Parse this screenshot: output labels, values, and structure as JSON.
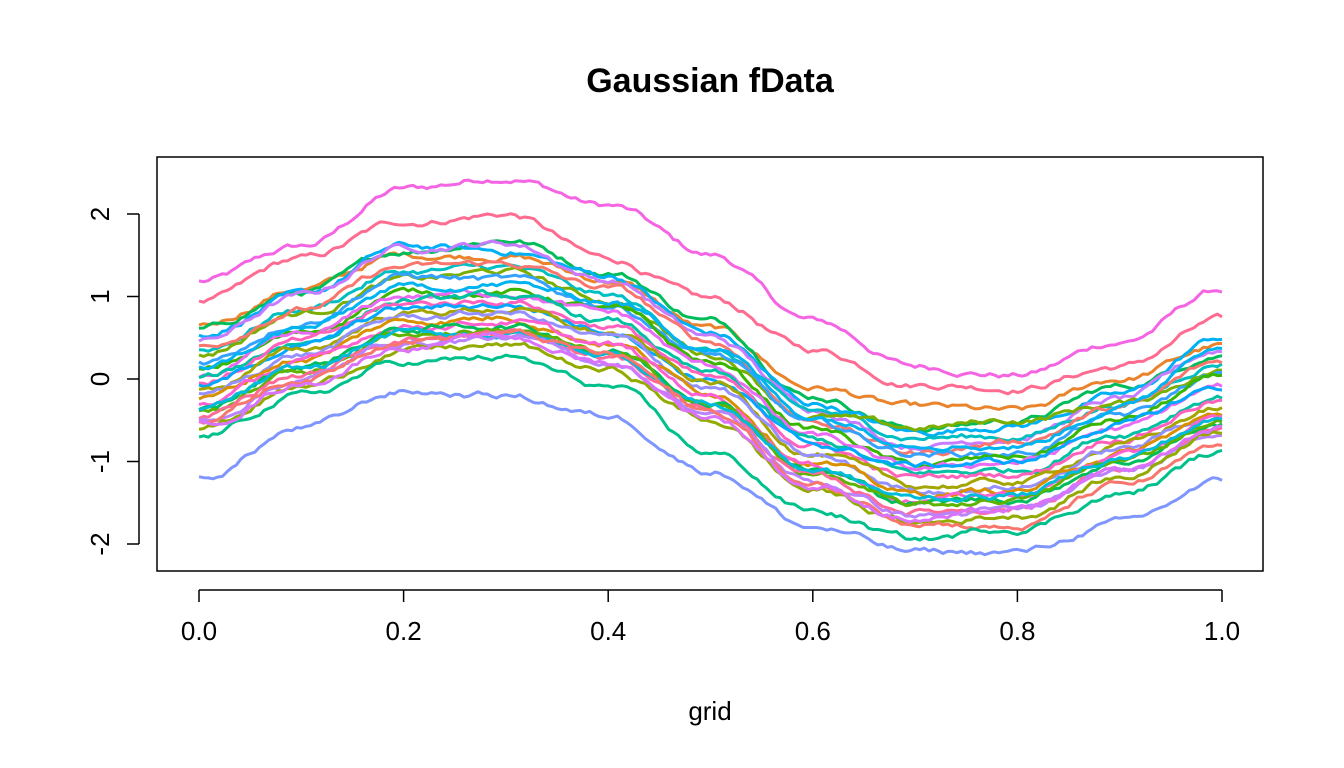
{
  "chart_data": {
    "type": "line",
    "title": "Gaussian fData",
    "xlabel": "grid",
    "ylabel": "",
    "xlim": [
      0,
      1
    ],
    "ylim": [
      -2.3,
      2.6
    ],
    "x_ticks": [
      "0.0",
      "0.2",
      "0.4",
      "0.6",
      "0.8",
      "1.0"
    ],
    "y_ticks": [
      "-2",
      "-1",
      "0",
      "1",
      "2"
    ],
    "grid": false,
    "x": [
      0.0,
      0.1,
      0.2,
      0.3,
      0.4,
      0.5,
      0.6,
      0.7,
      0.8,
      0.9,
      1.0
    ],
    "series": [
      {
        "color": "#F564E3",
        "values": [
          1.18,
          1.6,
          2.3,
          2.45,
          2.1,
          1.5,
          0.7,
          0.15,
          0.05,
          0.45,
          1.08
        ]
      },
      {
        "color": "#FF6C91",
        "values": [
          0.92,
          1.45,
          1.9,
          2.0,
          1.45,
          0.95,
          0.35,
          -0.05,
          -0.1,
          0.15,
          0.7
        ]
      },
      {
        "color": "#E9842C",
        "values": [
          0.65,
          1.1,
          1.5,
          1.5,
          1.2,
          0.6,
          -0.1,
          -0.35,
          -0.4,
          0.0,
          0.4
        ]
      },
      {
        "color": "#00BC59",
        "values": [
          0.6,
          1.05,
          1.55,
          1.7,
          1.3,
          0.7,
          -0.2,
          -0.6,
          -0.5,
          -0.1,
          0.3
        ]
      },
      {
        "color": "#00B0F6",
        "values": [
          0.55,
          1.0,
          1.6,
          1.55,
          1.25,
          0.55,
          -0.3,
          -0.65,
          -0.55,
          -0.2,
          0.5
        ]
      },
      {
        "color": "#C77CFF",
        "values": [
          0.45,
          1.0,
          1.6,
          1.65,
          1.2,
          0.5,
          -0.35,
          -0.8,
          -0.7,
          -0.25,
          0.35
        ]
      },
      {
        "color": "#00BFC4",
        "values": [
          0.35,
          0.85,
          1.3,
          1.35,
          1.0,
          0.35,
          -0.4,
          -0.7,
          -0.7,
          -0.3,
          0.2
        ]
      },
      {
        "color": "#7CAE00",
        "values": [
          0.3,
          0.8,
          1.2,
          1.3,
          0.95,
          0.3,
          -0.45,
          -0.6,
          -0.5,
          -0.3,
          0.1
        ]
      },
      {
        "color": "#F8766D",
        "values": [
          0.4,
          0.85,
          1.35,
          1.4,
          1.1,
          0.45,
          -0.5,
          -0.9,
          -0.75,
          -0.35,
          0.2
        ]
      },
      {
        "color": "#35A2FF",
        "values": [
          0.2,
          0.7,
          1.25,
          1.2,
          0.9,
          0.3,
          -0.55,
          -0.9,
          -0.9,
          -0.45,
          0.05
        ]
      },
      {
        "color": "#39B600",
        "values": [
          0.1,
          0.55,
          1.05,
          1.05,
          0.85,
          0.2,
          -0.6,
          -1.05,
          -0.95,
          -0.5,
          0.0
        ]
      },
      {
        "color": "#E76BF3",
        "values": [
          0.05,
          0.5,
          1.0,
          1.05,
          0.8,
          0.15,
          -0.7,
          -1.1,
          -1.0,
          -0.6,
          -0.1
        ]
      },
      {
        "color": "#00C1A3",
        "values": [
          0.0,
          0.45,
          0.95,
          1.0,
          0.7,
          0.05,
          -0.75,
          -1.15,
          -1.1,
          -0.65,
          -0.2
        ]
      },
      {
        "color": "#FF62BC",
        "values": [
          -0.05,
          0.45,
          0.9,
          0.95,
          0.65,
          0.0,
          -0.8,
          -1.2,
          -1.15,
          -0.7,
          -0.25
        ]
      },
      {
        "color": "#00A9FF",
        "values": [
          -0.1,
          0.4,
          0.85,
          0.9,
          0.6,
          0.0,
          -0.8,
          -1.05,
          -1.0,
          -0.55,
          -0.1
        ]
      },
      {
        "color": "#A3A500",
        "values": [
          -0.15,
          0.35,
          0.8,
          0.85,
          0.55,
          -0.05,
          -0.9,
          -1.3,
          -1.25,
          -0.8,
          -0.35
        ]
      },
      {
        "color": "#9590FF",
        "values": [
          -0.2,
          0.3,
          0.75,
          0.8,
          0.5,
          -0.1,
          -0.95,
          -1.35,
          -1.3,
          -0.85,
          -0.4
        ]
      },
      {
        "color": "#D89000",
        "values": [
          -0.25,
          0.25,
          0.7,
          0.75,
          0.45,
          -0.15,
          -1.0,
          -1.4,
          -1.35,
          -0.9,
          -0.45
        ]
      },
      {
        "color": "#FD61D1",
        "values": [
          -0.3,
          0.2,
          0.65,
          0.7,
          0.4,
          -0.2,
          -1.05,
          -1.45,
          -1.4,
          -0.95,
          -0.5
        ]
      },
      {
        "color": "#00BD5C",
        "values": [
          -0.35,
          0.15,
          0.6,
          0.65,
          0.35,
          -0.25,
          -1.1,
          -1.5,
          -1.45,
          -1.0,
          -0.55
        ]
      },
      {
        "color": "#5EB300",
        "values": [
          -0.4,
          0.1,
          0.55,
          0.6,
          0.3,
          -0.3,
          -1.15,
          -1.55,
          -1.45,
          -1.0,
          -0.5
        ]
      },
      {
        "color": "#FF6A98",
        "values": [
          -0.45,
          0.05,
          0.5,
          0.55,
          0.25,
          -0.35,
          -1.2,
          -1.6,
          -1.55,
          -1.1,
          -0.65
        ]
      },
      {
        "color": "#00BBDA",
        "values": [
          -0.35,
          0.1,
          0.55,
          0.55,
          0.3,
          -0.3,
          -1.1,
          -1.45,
          -1.4,
          -0.95,
          -0.5
        ]
      },
      {
        "color": "#B983FF",
        "values": [
          -0.5,
          0.0,
          0.45,
          0.5,
          0.2,
          -0.4,
          -1.25,
          -1.65,
          -1.6,
          -1.15,
          -0.6
        ]
      },
      {
        "color": "#93AA00",
        "values": [
          -0.6,
          -0.1,
          0.35,
          0.4,
          0.1,
          -0.5,
          -1.35,
          -1.75,
          -1.65,
          -1.2,
          -0.6
        ]
      },
      {
        "color": "#F8766D",
        "values": [
          -0.5,
          0.0,
          0.5,
          0.55,
          0.3,
          -0.4,
          -1.3,
          -1.7,
          -1.8,
          -1.3,
          -0.85
        ]
      },
      {
        "color": "#00C08B",
        "values": [
          -0.7,
          -0.2,
          0.2,
          0.25,
          -0.1,
          -0.9,
          -1.6,
          -1.95,
          -1.8,
          -1.4,
          -0.9
        ]
      },
      {
        "color": "#DB72FB",
        "values": [
          -0.55,
          -0.05,
          0.4,
          0.5,
          0.2,
          -0.45,
          -1.3,
          -1.7,
          -1.6,
          -1.15,
          -0.6
        ]
      },
      {
        "color": "#7F96FF",
        "values": [
          -1.2,
          -0.6,
          -0.15,
          -0.2,
          -0.45,
          -1.1,
          -1.8,
          -2.1,
          -2.1,
          -1.75,
          -1.25
        ]
      },
      {
        "color": "#00B4EF",
        "values": [
          0.15,
          0.6,
          1.1,
          1.15,
          0.95,
          0.4,
          -0.45,
          -0.75,
          -0.8,
          -0.35,
          0.45
        ]
      }
    ]
  }
}
